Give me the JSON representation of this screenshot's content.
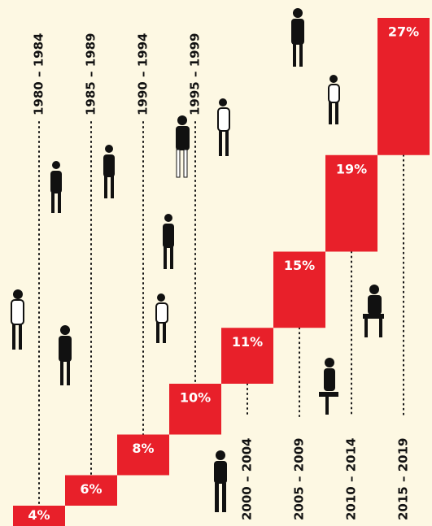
{
  "chart_data": {
    "type": "step-bar",
    "categories": [
      "1980 – 1984",
      "1985 – 1989",
      "1990 – 1994",
      "1995 – 1999",
      "2000 – 2004",
      "2005 – 2009",
      "2010 – 2014",
      "2015 – 2019"
    ],
    "values": [
      4,
      6,
      8,
      10,
      11,
      15,
      19,
      27
    ],
    "value_labels": [
      "4%",
      "6%",
      "8%",
      "10%",
      "11%",
      "15%",
      "19%",
      "27%"
    ],
    "color": "#e8202a",
    "ylim": [
      0,
      100
    ]
  }
}
